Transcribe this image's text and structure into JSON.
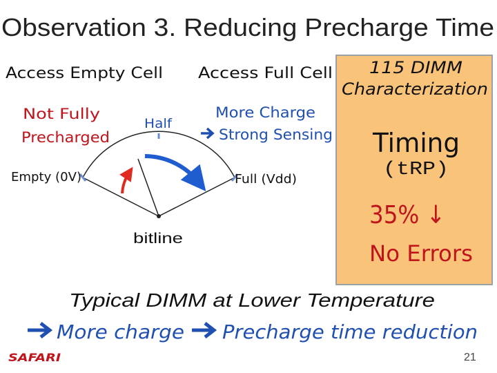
{
  "slide": {
    "title": "Observation 3. Reducing Precharge Time",
    "left_heading": "Access Empty Cell",
    "middle_heading": "Access Full Cell",
    "not_fully_precharged": [
      "Not Fully",
      "Precharged"
    ],
    "half_label": "Half",
    "more_charge": "More Charge",
    "strong_sensing": "Strong Sensing",
    "empty_label": "Empty (0V)",
    "full_label": "Full (Vdd)",
    "bitline_label": "bitline",
    "box": {
      "heading": [
        "115 DIMM",
        "Characterization"
      ],
      "timing": "Timing",
      "timing_param": "(tRP)",
      "reduction": "35% ↓",
      "errors": "No Errors"
    },
    "conclusion": "Typical DIMM at Lower Temperature",
    "implication": [
      "More charge",
      "Precharge time reduction"
    ],
    "footer": {
      "logo": "SAFARI",
      "page": "21"
    }
  }
}
